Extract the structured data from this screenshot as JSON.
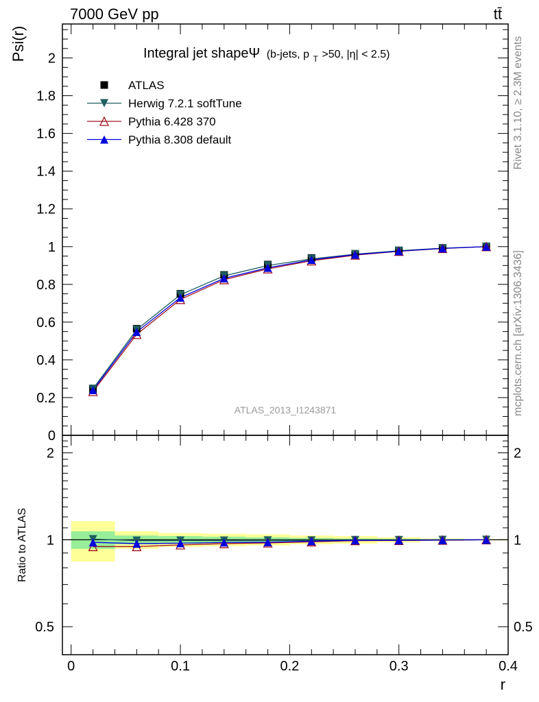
{
  "header": {
    "energy_label": "7000 GeV pp",
    "process_label": "tt̄"
  },
  "side_labels": {
    "rivet": "Rivet 3.1.10, ≥ 2.3M events",
    "mcplots": "mcplots.cern.ch [arXiv:1306.3436]"
  },
  "chart_data": [
    {
      "type": "line",
      "panel": "main",
      "title": "Integral jet shapeΨ",
      "title_cuts_pre": "(b-jets, p",
      "title_cuts_sub": "T",
      "title_cuts_post": ">50, |η| < 2.5)",
      "ylabel": "Psi(r)",
      "watermark": "ATLAS_2013_I1243871",
      "xlim": [
        -0.008,
        0.4
      ],
      "ylim": [
        0,
        2.18
      ],
      "yticks": [
        "0",
        "0.2",
        "0.4",
        "0.6",
        "0.8",
        "1",
        "1.2",
        "1.4",
        "1.6",
        "1.8",
        "2"
      ],
      "legend_position": "top-left",
      "x": [
        0.02,
        0.06,
        0.1,
        0.14,
        0.18,
        0.22,
        0.26,
        0.3,
        0.34,
        0.38
      ],
      "series": [
        {
          "name": "ATLAS",
          "marker": "square",
          "color": "#000000",
          "values": [
            0.245,
            0.565,
            0.75,
            0.85,
            0.905,
            0.94,
            0.962,
            0.98,
            0.993,
            1.0
          ]
        },
        {
          "name": "Herwig 7.2.1 softTune",
          "marker": "triangle-down",
          "color": "#1f5f5f",
          "values": [
            0.247,
            0.56,
            0.745,
            0.845,
            0.9,
            0.935,
            0.96,
            0.978,
            0.992,
            1.0
          ]
        },
        {
          "name": "Pythia 6.428 370",
          "marker": "triangle-up-open",
          "color": "#a01020",
          "values": [
            0.232,
            0.535,
            0.72,
            0.825,
            0.882,
            0.925,
            0.955,
            0.975,
            0.99,
            1.0
          ]
        },
        {
          "name": "Pythia 8.308 default",
          "marker": "triangle-up",
          "color": "#0000dd",
          "values": [
            0.24,
            0.548,
            0.73,
            0.832,
            0.888,
            0.93,
            0.958,
            0.976,
            0.991,
            1.0
          ]
        }
      ]
    },
    {
      "type": "line",
      "panel": "ratio",
      "ylabel": "Ratio to ATLAS",
      "xlabel": "r",
      "xlim": [
        -0.008,
        0.4
      ],
      "ylim": [
        0.4,
        2.3
      ],
      "log_y": true,
      "yticks": [
        "0.5",
        "1",
        "2"
      ],
      "xticks": [
        "0",
        "0.1",
        "0.2",
        "0.3",
        "0.4"
      ],
      "x": [
        0.02,
        0.06,
        0.1,
        0.14,
        0.18,
        0.22,
        0.26,
        0.3,
        0.34,
        0.38
      ],
      "bins": [
        [
          0,
          0.04
        ],
        [
          0.04,
          0.08
        ],
        [
          0.08,
          0.12
        ],
        [
          0.12,
          0.16
        ],
        [
          0.16,
          0.2
        ],
        [
          0.2,
          0.24
        ],
        [
          0.24,
          0.28
        ],
        [
          0.28,
          0.32
        ],
        [
          0.32,
          0.36
        ],
        [
          0.36,
          0.4
        ]
      ],
      "band_total_half_width": [
        0.16,
        0.07,
        0.055,
        0.05,
        0.045,
        0.035,
        0.03,
        0.02,
        0.01,
        0.005
      ],
      "band_stat_half_width": [
        0.07,
        0.035,
        0.03,
        0.025,
        0.02,
        0.015,
        0.01,
        0.008,
        0.005,
        0.003
      ],
      "band_total_color": "#ffff99",
      "band_stat_color": "#99ee99",
      "series": [
        {
          "name": "Herwig 7.2.1 softTune",
          "marker": "triangle-down",
          "color": "#1f5f5f",
          "values": [
            1.005,
            0.993,
            0.994,
            0.994,
            0.995,
            0.995,
            0.998,
            0.998,
            0.999,
            1.0
          ]
        },
        {
          "name": "Pythia 6.428 370",
          "marker": "triangle-up-open",
          "color": "#a01020",
          "values": [
            0.947,
            0.947,
            0.96,
            0.97,
            0.975,
            0.984,
            0.993,
            0.995,
            0.997,
            1.0
          ]
        },
        {
          "name": "Pythia 8.308 default",
          "marker": "triangle-up",
          "color": "#0000dd",
          "values": [
            0.98,
            0.97,
            0.973,
            0.979,
            0.981,
            0.989,
            0.996,
            0.996,
            0.998,
            1.0
          ]
        }
      ]
    }
  ]
}
